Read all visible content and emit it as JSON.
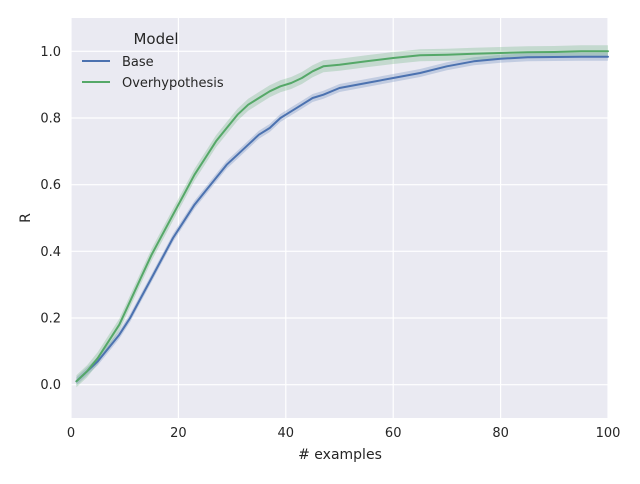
{
  "chart_data": {
    "type": "line",
    "xlabel": "# examples",
    "ylabel": "R",
    "xlim": [
      0,
      100
    ],
    "ylim": [
      -0.1,
      1.1
    ],
    "x_ticks": [
      0,
      20,
      40,
      60,
      80,
      100
    ],
    "y_ticks": [
      0.0,
      0.2,
      0.4,
      0.6,
      0.8,
      1.0
    ],
    "x_tick_labels": [
      "0",
      "20",
      "40",
      "60",
      "80",
      "100"
    ],
    "y_tick_labels": [
      "0.0",
      "0.2",
      "0.4",
      "0.6",
      "0.8",
      "1.0"
    ],
    "grid": true,
    "legend_title": "Model",
    "legend_position": "top-left",
    "background_color": "#eaeaf2",
    "series": [
      {
        "name": "Base",
        "color": "#4c72b0",
        "x": [
          1,
          3,
          5,
          7,
          9,
          11,
          13,
          15,
          17,
          19,
          21,
          23,
          25,
          27,
          29,
          31,
          33,
          35,
          37,
          39,
          41,
          43,
          45,
          47,
          50,
          55,
          60,
          65,
          70,
          75,
          80,
          85,
          90,
          95,
          100
        ],
        "y": [
          0.01,
          0.04,
          0.07,
          0.11,
          0.15,
          0.2,
          0.26,
          0.32,
          0.38,
          0.44,
          0.49,
          0.54,
          0.58,
          0.62,
          0.66,
          0.69,
          0.72,
          0.75,
          0.77,
          0.8,
          0.82,
          0.84,
          0.86,
          0.87,
          0.89,
          0.905,
          0.92,
          0.935,
          0.955,
          0.97,
          0.978,
          0.982,
          0.983,
          0.984,
          0.984
        ],
        "ci_halfwidth": 0.012
      },
      {
        "name": "Overhypothesis",
        "color": "#55a868",
        "x": [
          1,
          3,
          5,
          7,
          9,
          11,
          13,
          15,
          17,
          19,
          21,
          23,
          25,
          27,
          29,
          31,
          33,
          35,
          37,
          39,
          41,
          43,
          45,
          47,
          50,
          55,
          60,
          65,
          70,
          75,
          80,
          85,
          90,
          95,
          100
        ],
        "y": [
          0.01,
          0.04,
          0.08,
          0.13,
          0.18,
          0.25,
          0.32,
          0.39,
          0.45,
          0.51,
          0.57,
          0.63,
          0.68,
          0.73,
          0.77,
          0.81,
          0.84,
          0.86,
          0.88,
          0.895,
          0.905,
          0.92,
          0.94,
          0.955,
          0.96,
          0.97,
          0.98,
          0.988,
          0.99,
          0.993,
          0.995,
          0.997,
          0.998,
          1.0,
          1.0
        ],
        "ci_halfwidth": 0.018
      }
    ]
  }
}
